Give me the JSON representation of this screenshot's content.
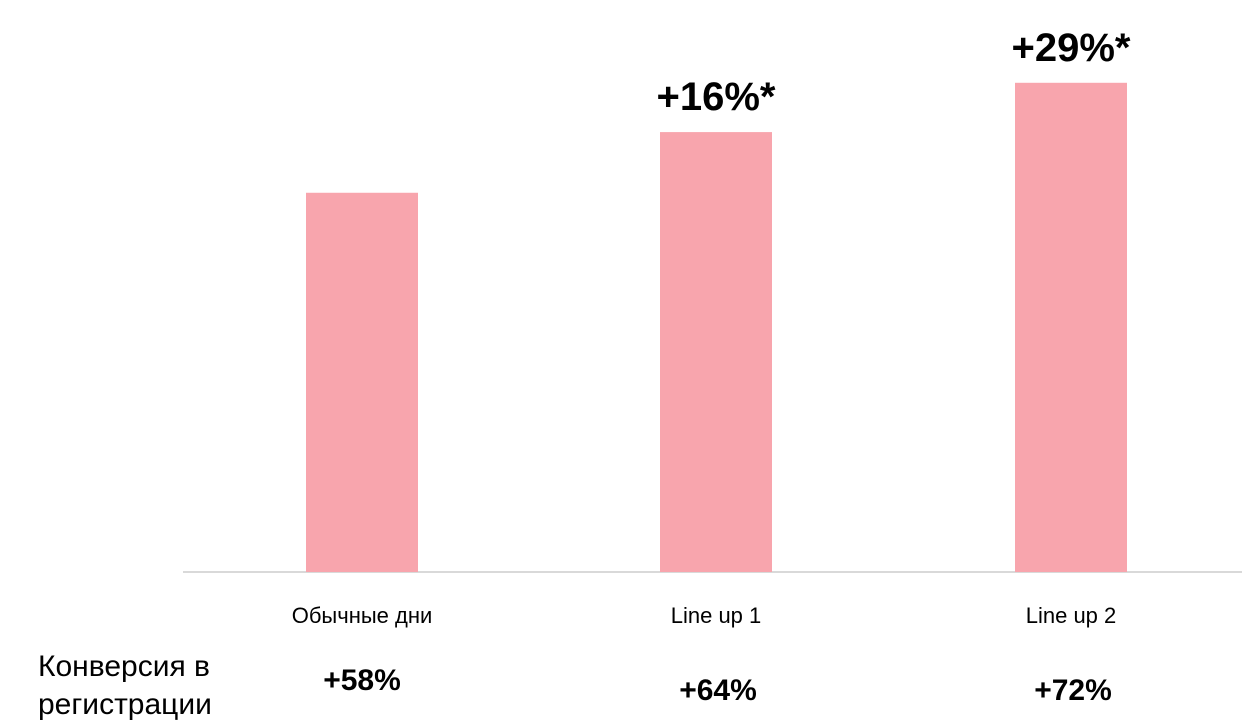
{
  "chart_data": {
    "type": "bar",
    "categories": [
      "Обычные дни",
      "Line up 1",
      "Line up 2"
    ],
    "values": [
      100,
      116,
      129
    ],
    "data_labels": [
      "",
      "+16%*",
      "+29%*"
    ],
    "ylim": [
      0,
      130
    ],
    "grid": false,
    "bar_color": "#F8A5AD",
    "axis_color": "#D9D9D9"
  },
  "conversion": {
    "label_line1": "Конверсия в",
    "label_line2": "регистрации",
    "values": [
      "+58%",
      "+64%",
      "+72%"
    ]
  }
}
